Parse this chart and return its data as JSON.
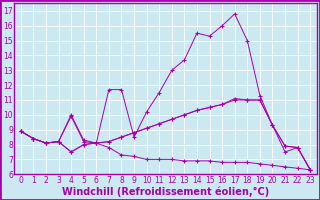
{
  "xlabel": "Windchill (Refroidissement éolien,°C)",
  "background_color": "#cce8f0",
  "grid_color": "#ffffff",
  "line_color": "#aa00aa",
  "xlim": [
    -0.5,
    23.5
  ],
  "ylim": [
    6,
    17.5
  ],
  "xticks": [
    0,
    1,
    2,
    3,
    4,
    5,
    6,
    7,
    8,
    9,
    10,
    11,
    12,
    13,
    14,
    15,
    16,
    17,
    18,
    19,
    20,
    21,
    22,
    23
  ],
  "yticks": [
    6,
    7,
    8,
    9,
    10,
    11,
    12,
    13,
    14,
    15,
    16,
    17
  ],
  "series": [
    [
      8.9,
      8.4,
      8.1,
      8.2,
      10.0,
      8.3,
      8.1,
      11.7,
      11.7,
      8.5,
      10.2,
      11.5,
      13.0,
      13.7,
      15.5,
      15.3,
      16.0,
      16.8,
      15.0,
      11.3,
      9.3,
      7.5,
      7.8,
      6.3
    ],
    [
      8.9,
      8.4,
      8.1,
      8.2,
      7.5,
      8.0,
      8.1,
      7.8,
      7.3,
      7.2,
      7.0,
      7.0,
      7.0,
      6.9,
      6.9,
      6.9,
      6.8,
      6.8,
      6.8,
      6.7,
      6.6,
      6.5,
      6.4,
      6.3
    ],
    [
      8.9,
      8.4,
      8.1,
      8.2,
      7.5,
      8.0,
      8.1,
      8.2,
      8.5,
      8.8,
      9.1,
      9.4,
      9.7,
      10.0,
      10.3,
      10.5,
      10.7,
      11.0,
      11.0,
      11.0,
      9.3,
      7.9,
      7.8,
      6.3
    ],
    [
      8.9,
      8.4,
      8.1,
      8.2,
      9.9,
      8.2,
      8.1,
      8.2,
      8.5,
      8.8,
      9.1,
      9.4,
      9.7,
      10.0,
      10.3,
      10.5,
      10.7,
      11.1,
      11.0,
      11.0,
      9.3,
      7.9,
      7.8,
      6.3
    ]
  ],
  "font_color": "#aa00aa",
  "tick_fontsize": 5.5,
  "label_fontsize": 7.0
}
